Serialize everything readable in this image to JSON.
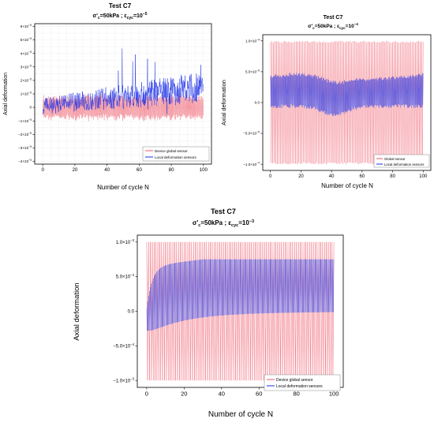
{
  "chart_data": [
    {
      "type": "line",
      "title": "Test C7",
      "subtitle": {
        "sigma_sym": "σ'",
        "sigma_sub": "c",
        "eq": "=50kPa ; ε",
        "eps_sub": "cyc",
        "val_base": "=10",
        "val_exp": "−5"
      },
      "xlabel": "Number of cycle N",
      "ylabel": "Axial deformation",
      "xlim": [
        -5,
        105
      ],
      "ylim": [
        -4.2e-05,
        6.2e-05
      ],
      "xticks": [
        "0",
        "20",
        "40",
        "60",
        "80",
        "100"
      ],
      "xtick_values": [
        0,
        20,
        40,
        60,
        80,
        100
      ],
      "ytick_values": [
        -4e-05,
        -3e-05,
        -2e-05,
        -1e-05,
        0,
        1e-05,
        2e-05,
        3e-05,
        4e-05,
        5e-05,
        6e-05
      ],
      "ytick_labels": [
        {
          "base": "−4×10",
          "exp": "−5"
        },
        {
          "base": "−3×10",
          "exp": "−5"
        },
        {
          "base": "−2×10",
          "exp": "−5"
        },
        {
          "base": "−1×10",
          "exp": "−5"
        },
        {
          "base": "0",
          "exp": ""
        },
        {
          "base": "1×10",
          "exp": "−5"
        },
        {
          "base": "2×10",
          "exp": "−5"
        },
        {
          "base": "3×10",
          "exp": "−5"
        },
        {
          "base": "4×10",
          "exp": "−5"
        },
        {
          "base": "5×10",
          "exp": "−5"
        },
        {
          "base": "6×10",
          "exp": "−5"
        }
      ],
      "grid": true,
      "legend_position": "bottom-right",
      "series": [
        {
          "name": "Device global sensor",
          "color": "#ee5566",
          "amplitude_approx": 1e-05,
          "mean_approx": 0.0
        },
        {
          "name": "Local deformation sensors",
          "color": "#1a2ee8",
          "envelope_approx": {
            "low": -5e-06,
            "high": 2.5e-05
          },
          "max_spike_approx": 5.4e-05,
          "min_spike_approx": -3.1e-05
        }
      ]
    },
    {
      "type": "line",
      "title": "Test C7",
      "subtitle": {
        "sigma_sym": "σ'",
        "sigma_sub": "c",
        "eq": "=50kPa ; ε",
        "eps_sub": "cyc",
        "val_base": "=10",
        "val_exp": "−4"
      },
      "xlabel": "Number of cycle N",
      "ylabel": "Axial deformation",
      "xlim": [
        -5,
        105
      ],
      "ylim": [
        -0.00011,
        0.00011
      ],
      "xticks": [
        "0",
        "20",
        "40",
        "60",
        "80",
        "100"
      ],
      "xtick_values": [
        0,
        20,
        40,
        60,
        80,
        100
      ],
      "ytick_values": [
        -0.0001,
        -5e-05,
        0,
        5e-05,
        0.0001
      ],
      "ytick_labels": [
        {
          "base": "−1.0×10",
          "exp": "−4"
        },
        {
          "base": "−5.0×10",
          "exp": "−5"
        },
        {
          "base": "0.0",
          "exp": ""
        },
        {
          "base": "5.0×10",
          "exp": "−5"
        },
        {
          "base": "1.0×10",
          "exp": "−4"
        }
      ],
      "grid": false,
      "legend_position": "bottom-right",
      "series": [
        {
          "name": "Global sensor",
          "color": "#ee5566",
          "amplitude_approx": 0.0001,
          "mean_approx": 0.0
        },
        {
          "name": "Local deformation sensors",
          "color": "#1a2ee8",
          "envelope_approx": {
            "low": -1e-05,
            "high": 4.5e-05
          }
        }
      ]
    },
    {
      "type": "line",
      "title": "Test C7",
      "subtitle": {
        "sigma_sym": "σ'",
        "sigma_sub": "c",
        "eq": "=50kPa ; ε",
        "eps_sub": "cyc",
        "val_base": "=10",
        "val_exp": "−3"
      },
      "xlabel": "Number of cycle N",
      "ylabel": "Axial deformation",
      "xlim": [
        -5,
        105
      ],
      "ylim": [
        -0.0011,
        0.0011
      ],
      "xticks": [
        "0",
        "20",
        "40",
        "60",
        "80",
        "100"
      ],
      "xtick_values": [
        0,
        20,
        40,
        60,
        80,
        100
      ],
      "ytick_values": [
        -0.001,
        -0.0005,
        0,
        0.0005,
        0.001
      ],
      "ytick_labels": [
        {
          "base": "−1.0×10",
          "exp": "−3"
        },
        {
          "base": "−5.0×10",
          "exp": "−4"
        },
        {
          "base": "0.0",
          "exp": ""
        },
        {
          "base": "5.0×10",
          "exp": "−4"
        },
        {
          "base": "1.0×10",
          "exp": "−3"
        }
      ],
      "grid": false,
      "legend_position": "bottom-right",
      "series": [
        {
          "name": "Device global sensor",
          "color": "#ee5566",
          "amplitude_approx": 0.001,
          "mean_approx": 0.0
        },
        {
          "name": "Local deformation sensors",
          "color": "#1a2ee8",
          "upper_envelope_approx": 0.00072,
          "lower_envelope_approx": -0.0001
        }
      ]
    }
  ]
}
